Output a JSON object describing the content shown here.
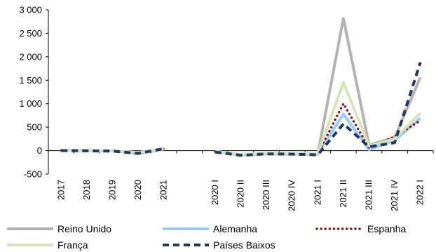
{
  "chart_data": {
    "type": "line",
    "categories": [
      "2017",
      "2018",
      "2019",
      "2020",
      "2021",
      "",
      "2020 I",
      "2020 II",
      "2020 III",
      "2020 IV",
      "2021 I",
      "2021 II",
      "2021 III",
      "2021 IV",
      "2022 I"
    ],
    "ylim": [
      -500,
      3000
    ],
    "yticks": [
      -500,
      0,
      500,
      1000,
      1500,
      2000,
      2500,
      3000
    ],
    "ytick_labels": [
      "-500",
      "0",
      "500",
      "1 000",
      "1 500",
      "2 000",
      "2 500",
      "3 000"
    ],
    "grid": false,
    "legend_position": "bottom",
    "series": [
      {
        "name": "Reino Unido",
        "color": "#b3b3b3",
        "style": "solid",
        "values": [
          10,
          5,
          0,
          -60,
          50,
          null,
          -20,
          -90,
          -70,
          -70,
          -80,
          2820,
          120,
          280,
          1560
        ]
      },
      {
        "name": "Alemanha",
        "color": "#99ccff",
        "style": "solid",
        "values": [
          5,
          0,
          -5,
          -55,
          30,
          null,
          -30,
          -80,
          -60,
          -60,
          -70,
          780,
          20,
          220,
          690
        ]
      },
      {
        "name": "Espanha",
        "color": "#8b1a1a",
        "style": "dotted",
        "values": [
          5,
          0,
          -5,
          -50,
          40,
          null,
          -20,
          -85,
          -60,
          -60,
          -70,
          1000,
          60,
          300,
          640
        ]
      },
      {
        "name": "França",
        "color": "#d6e4b8",
        "style": "solid",
        "values": [
          8,
          2,
          0,
          -40,
          45,
          null,
          -15,
          -80,
          -55,
          -55,
          -65,
          1450,
          100,
          250,
          800
        ]
      },
      {
        "name": "Países Baixos",
        "color": "#1f3864",
        "style": "dashed",
        "values": [
          0,
          -5,
          -10,
          -60,
          40,
          null,
          -30,
          -100,
          -70,
          -75,
          -90,
          570,
          80,
          170,
          1880
        ]
      }
    ]
  }
}
